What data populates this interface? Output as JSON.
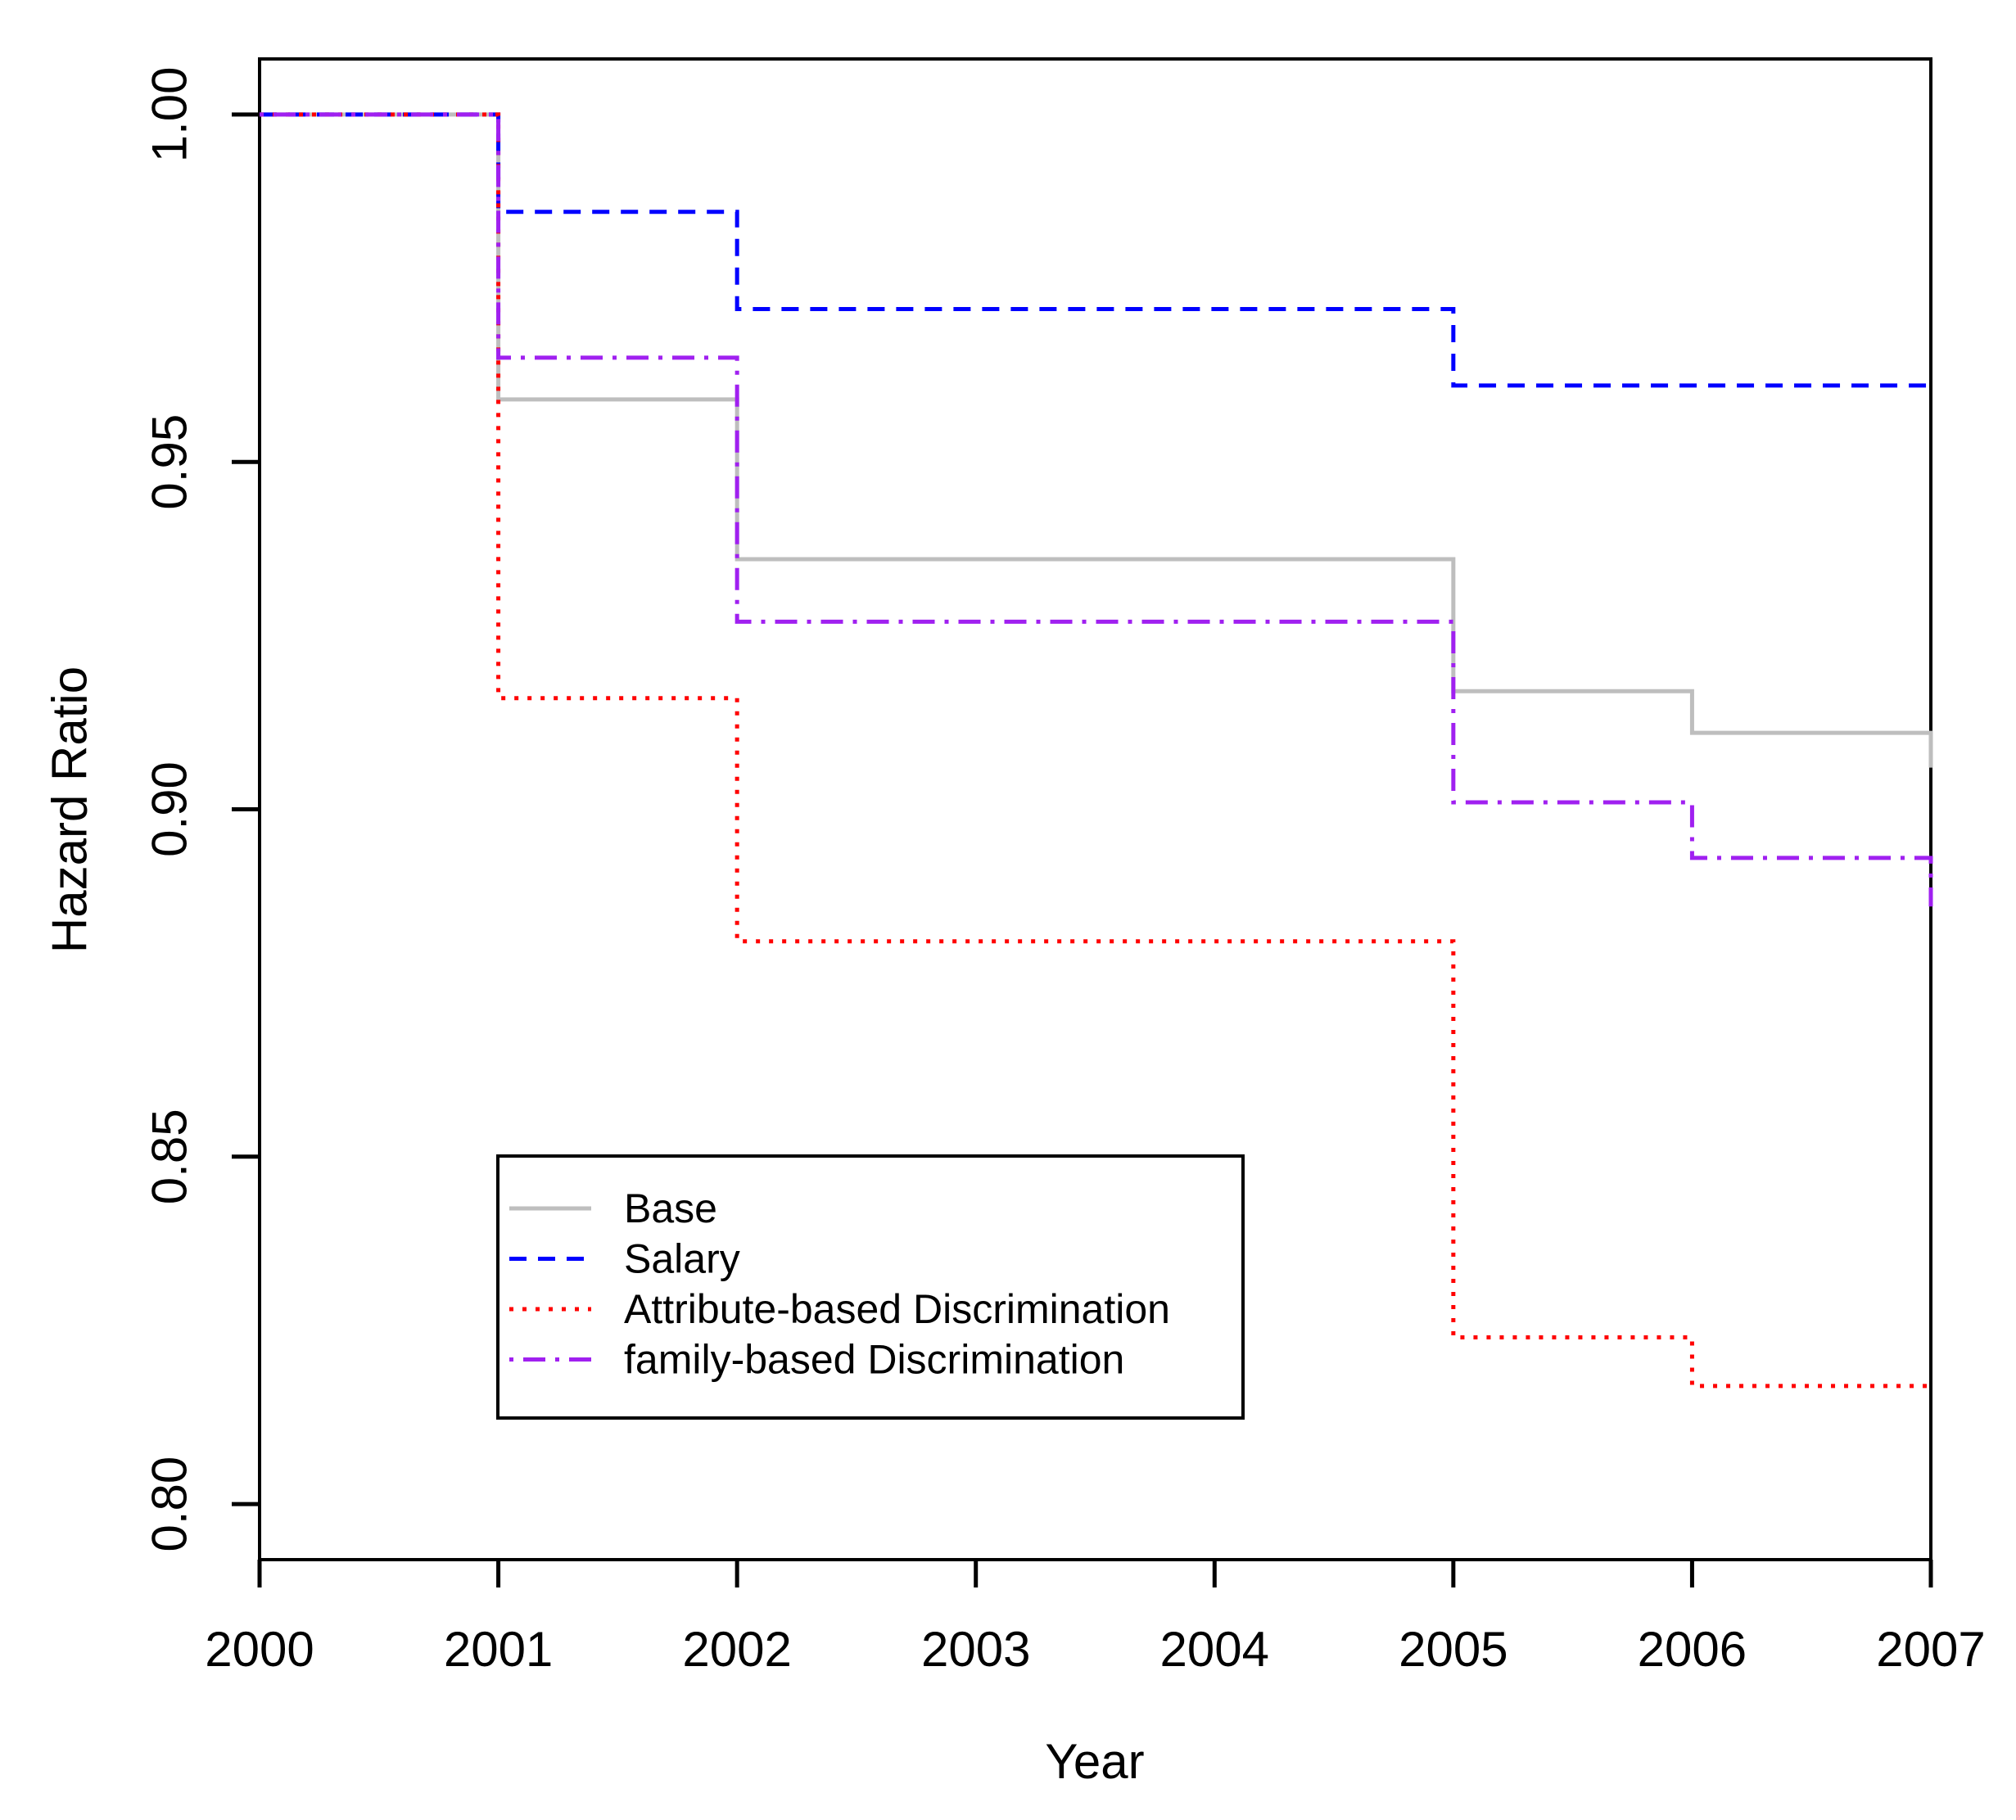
{
  "chart_data": {
    "type": "line",
    "subtype": "step-post",
    "title": "",
    "xlabel": "Year",
    "ylabel": "Hazard Ratio",
    "xlim": [
      2000,
      2007
    ],
    "ylim": [
      0.792,
      1.008
    ],
    "grid": false,
    "background": "#ffffff",
    "axis_color": "#000000",
    "x_ticks": [
      {
        "value": 2000,
        "label": "2000"
      },
      {
        "value": 2001,
        "label": "2001"
      },
      {
        "value": 2002,
        "label": "2002"
      },
      {
        "value": 2003,
        "label": "2003"
      },
      {
        "value": 2004,
        "label": "2004"
      },
      {
        "value": 2005,
        "label": "2005"
      },
      {
        "value": 2006,
        "label": "2006"
      },
      {
        "value": 2007,
        "label": "2007"
      }
    ],
    "y_ticks": [
      {
        "value": 1.0,
        "label": "1.00"
      },
      {
        "value": 0.95,
        "label": "0.95"
      },
      {
        "value": 0.9,
        "label": "0.90"
      },
      {
        "value": 0.85,
        "label": "0.85"
      },
      {
        "value": 0.8,
        "label": "0.80"
      }
    ],
    "series": [
      {
        "name": "Base",
        "color": "#bebebe",
        "linestyle": "solid",
        "step": "post",
        "x": [
          2000,
          2001,
          2002,
          2005,
          2006,
          2007
        ],
        "y": [
          1.0,
          0.959,
          0.936,
          0.917,
          0.911,
          0.906
        ]
      },
      {
        "name": "Salary",
        "color": "#0000ff",
        "linestyle": "dashed",
        "step": "post",
        "x": [
          2000,
          2001,
          2002,
          2005
        ],
        "y": [
          1.0,
          0.986,
          0.972,
          0.961
        ]
      },
      {
        "name": "Attribute-based Discrimination",
        "color": "#ff0000",
        "linestyle": "dotted",
        "step": "post",
        "x": [
          2000,
          2001,
          2002,
          2005,
          2006
        ],
        "y": [
          1.0,
          0.916,
          0.881,
          0.824,
          0.817
        ]
      },
      {
        "name": "family-based Discrimination",
        "color": "#a020f0",
        "linestyle": "dotdash",
        "step": "post",
        "x": [
          2000,
          2001,
          2002,
          2005,
          2006,
          2007
        ],
        "y": [
          1.0,
          0.965,
          0.927,
          0.901,
          0.893,
          0.886
        ]
      }
    ],
    "legend": {
      "position": "inside-lower-left",
      "entries": [
        {
          "label": "Base",
          "color": "#bebebe",
          "linestyle": "solid"
        },
        {
          "label": "Salary",
          "color": "#0000ff",
          "linestyle": "dashed"
        },
        {
          "label": "Attribute-based Discrimination",
          "color": "#ff0000",
          "linestyle": "dotted"
        },
        {
          "label": "family-based Discrimination",
          "color": "#a020f0",
          "linestyle": "dotdash"
        }
      ]
    }
  }
}
